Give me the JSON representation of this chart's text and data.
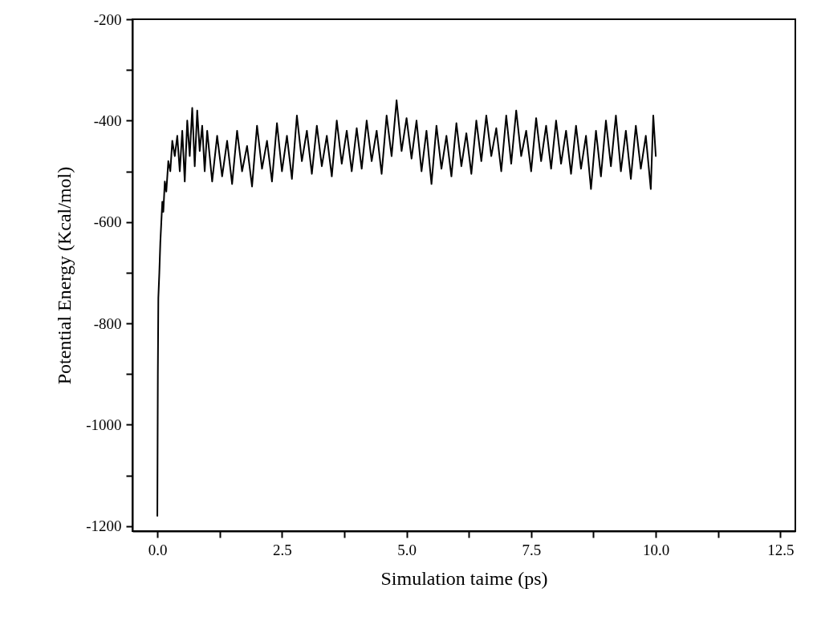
{
  "chart_data": {
    "type": "line",
    "xlabel": "Simulation taime (ps)",
    "ylabel": "Potential Energy (Kcal/mol)",
    "xlim": [
      -0.5,
      12.8
    ],
    "ylim": [
      -1210,
      -200
    ],
    "xticks": [
      {
        "value": 0,
        "label": "0.0"
      },
      {
        "value": 1.25,
        "label": null
      },
      2.5,
      {
        "value": 3.75,
        "label": null
      },
      {
        "value": 5,
        "label": "5.0"
      },
      {
        "value": 6.25,
        "label": null
      },
      7.5,
      {
        "value": 8.75,
        "label": null
      },
      {
        "value": 10,
        "label": "10.0"
      },
      {
        "value": 11.25,
        "label": null
      },
      12.5
    ],
    "yticks": [
      -1200,
      {
        "value": -1100,
        "label": null
      },
      -1000,
      {
        "value": -900,
        "label": null
      },
      -800,
      {
        "value": -700,
        "label": null
      },
      -600,
      {
        "value": -500,
        "label": null
      },
      -400,
      {
        "value": -300,
        "label": null
      },
      -200
    ],
    "grid": false,
    "marker": "none",
    "line_style": "solid",
    "series": [
      {
        "color": "#000000",
        "x": [
          0,
          0.01,
          0.02,
          0.04,
          0.06,
          0.08,
          0.1,
          0.12,
          0.15,
          0.18,
          0.22,
          0.26,
          0.3,
          0.35,
          0.4,
          0.45,
          0.5,
          0.55,
          0.6,
          0.65,
          0.7,
          0.75,
          0.8,
          0.85,
          0.9,
          0.95,
          1.0,
          1.1,
          1.2,
          1.3,
          1.4,
          1.5,
          1.6,
          1.7,
          1.8,
          1.9,
          2.0,
          2.1,
          2.2,
          2.3,
          2.4,
          2.5,
          2.6,
          2.7,
          2.8,
          2.9,
          3.0,
          3.1,
          3.2,
          3.3,
          3.4,
          3.5,
          3.6,
          3.7,
          3.8,
          3.9,
          4.0,
          4.1,
          4.2,
          4.3,
          4.4,
          4.5,
          4.6,
          4.7,
          4.8,
          4.9,
          5.0,
          5.1,
          5.2,
          5.3,
          5.4,
          5.5,
          5.6,
          5.7,
          5.8,
          5.9,
          6.0,
          6.1,
          6.2,
          6.3,
          6.4,
          6.5,
          6.6,
          6.7,
          6.8,
          6.9,
          7.0,
          7.1,
          7.2,
          7.3,
          7.4,
          7.5,
          7.6,
          7.7,
          7.8,
          7.9,
          8.0,
          8.1,
          8.2,
          8.3,
          8.4,
          8.5,
          8.6,
          8.7,
          8.8,
          8.9,
          9.0,
          9.1,
          9.2,
          9.3,
          9.4,
          9.5,
          9.6,
          9.7,
          9.8,
          9.9,
          9.95,
          10.0
        ],
        "values": [
          -1180,
          -900,
          -750,
          -700,
          -640,
          -600,
          -560,
          -580,
          -520,
          -540,
          -480,
          -500,
          -440,
          -470,
          -430,
          -500,
          -420,
          -520,
          -400,
          -470,
          -375,
          -490,
          -380,
          -460,
          -410,
          -500,
          -420,
          -520,
          -430,
          -510,
          -440,
          -525,
          -420,
          -500,
          -450,
          -530,
          -410,
          -495,
          -440,
          -520,
          -405,
          -500,
          -430,
          -515,
          -390,
          -480,
          -420,
          -505,
          -410,
          -490,
          -430,
          -510,
          -400,
          -485,
          -420,
          -500,
          -415,
          -495,
          -400,
          -480,
          -420,
          -505,
          -390,
          -470,
          -360,
          -460,
          -395,
          -475,
          -400,
          -500,
          -420,
          -525,
          -410,
          -495,
          -430,
          -510,
          -405,
          -490,
          -425,
          -505,
          -400,
          -480,
          -390,
          -470,
          -415,
          -500,
          -390,
          -485,
          -380,
          -470,
          -420,
          -500,
          -395,
          -480,
          -410,
          -495,
          -400,
          -485,
          -420,
          -505,
          -410,
          -495,
          -430,
          -535,
          -420,
          -510,
          -400,
          -490,
          -390,
          -500,
          -420,
          -515,
          -410,
          -495,
          -430,
          -535,
          -390,
          -470
        ]
      }
    ]
  }
}
